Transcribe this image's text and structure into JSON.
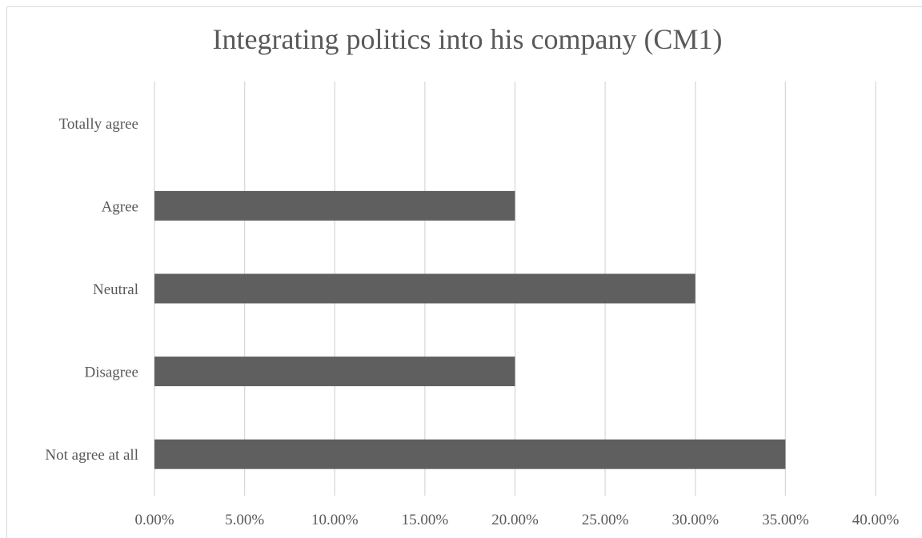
{
  "chart_data": {
    "type": "bar",
    "orientation": "horizontal",
    "title": "Integrating politics into his company (CM1)",
    "xlabel": "",
    "ylabel": "",
    "categories": [
      "Totally agree",
      "Agree",
      "Neutral",
      "Disagree",
      "Not agree at all"
    ],
    "values": [
      0,
      0.2,
      0.3,
      0.2,
      0.35
    ],
    "xlim": [
      0,
      0.4
    ],
    "x_ticks": [
      0,
      0.05,
      0.1,
      0.15,
      0.2,
      0.25,
      0.3,
      0.35,
      0.4
    ],
    "x_tick_labels": [
      "0.00%",
      "5.00%",
      "10.00%",
      "15.00%",
      "20.00%",
      "25.00%",
      "30.00%",
      "35.00%",
      "40.00%"
    ],
    "grid": true,
    "legend": "none",
    "bar_color": "#5f5f5f",
    "grid_color": "#d9d9d9"
  }
}
